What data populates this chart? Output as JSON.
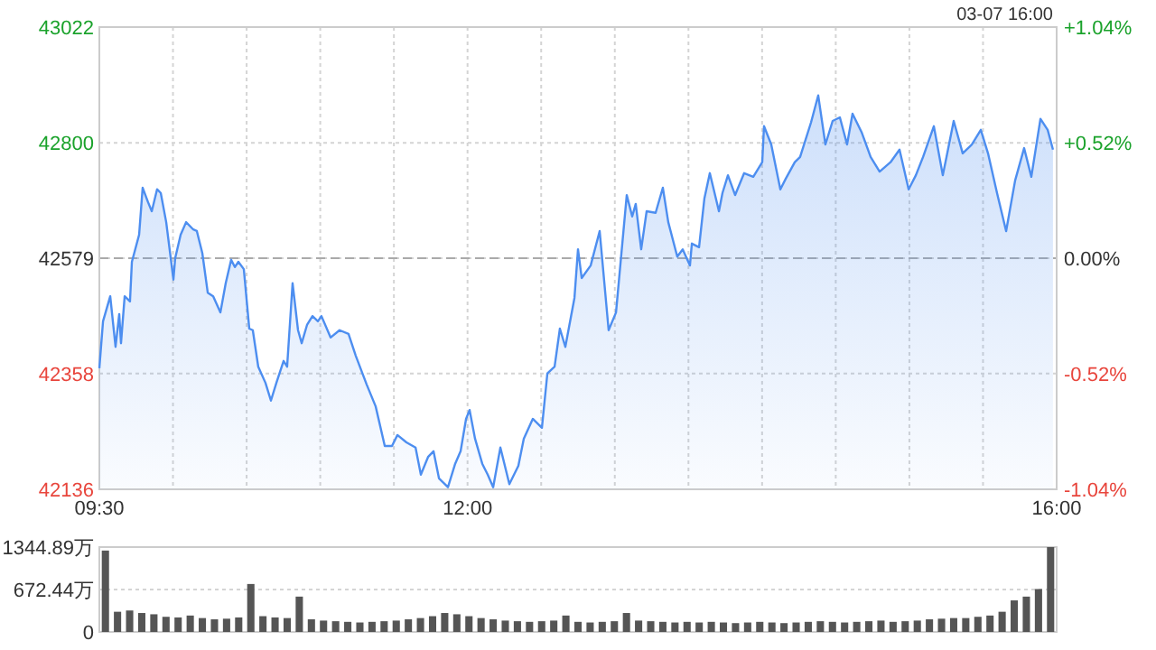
{
  "chart_data": [
    {
      "type": "area",
      "annotations": [
        "03-07 16:00"
      ],
      "grid": true,
      "x": [
        9.5,
        9.525,
        9.574,
        9.61,
        9.635,
        9.647,
        9.672,
        9.708,
        9.721,
        9.77,
        9.794,
        9.831,
        9.856,
        9.892,
        9.917,
        9.954,
        10.003,
        10.015,
        10.052,
        10.089,
        10.138,
        10.162,
        10.199,
        10.236,
        10.273,
        10.322,
        10.358,
        10.395,
        10.42,
        10.444,
        10.481,
        10.518,
        10.542,
        10.579,
        10.628,
        10.665,
        10.702,
        10.751,
        10.775,
        10.812,
        10.849,
        10.874,
        10.91,
        10.947,
        10.984,
        11.008,
        11.07,
        11.131,
        11.192,
        11.241,
        11.315,
        11.376,
        11.438,
        11.487,
        11.524,
        11.585,
        11.647,
        11.683,
        11.732,
        11.769,
        11.806,
        11.867,
        11.916,
        11.953,
        11.99,
        12.014,
        12.051,
        12.1,
        12.137,
        12.174,
        12.223,
        12.284,
        12.345,
        12.382,
        12.443,
        12.505,
        12.542,
        12.591,
        12.627,
        12.664,
        12.726,
        12.75,
        12.775,
        12.836,
        12.897,
        12.958,
        13.008,
        13.081,
        13.118,
        13.142,
        13.179,
        13.216,
        13.277,
        13.326,
        13.363,
        13.424,
        13.461,
        13.51,
        13.523,
        13.572,
        13.608,
        13.645,
        13.707,
        13.731,
        13.768,
        13.817,
        13.878,
        13.94,
        14.001,
        14.013,
        14.062,
        14.124,
        14.16,
        14.222,
        14.258,
        14.332,
        14.381,
        14.43,
        14.479,
        14.528,
        14.577,
        14.614,
        14.675,
        14.737,
        14.798,
        14.872,
        14.933,
        14.995,
        15.044,
        15.093,
        15.166,
        15.227,
        15.252,
        15.301,
        15.362,
        15.424,
        15.485,
        15.534,
        15.595,
        15.657,
        15.718,
        15.779,
        15.828,
        15.89,
        15.939,
        15.975
      ],
      "series": [
        {
          "color": "#4d8ef0",
          "values": [
            42368,
            42458,
            42506,
            42409,
            42472,
            42416,
            42506,
            42496,
            42572,
            42624,
            42714,
            42686,
            42669,
            42711,
            42704,
            42648,
            42538,
            42579,
            42624,
            42648,
            42634,
            42631,
            42589,
            42513,
            42506,
            42475,
            42531,
            42576,
            42562,
            42572,
            42558,
            42444,
            42441,
            42371,
            42340,
            42306,
            42340,
            42382,
            42371,
            42531,
            42441,
            42416,
            42451,
            42468,
            42458,
            42468,
            42427,
            42441,
            42434,
            42392,
            42337,
            42295,
            42219,
            42219,
            42240,
            42226,
            42216,
            42164,
            42198,
            42209,
            42157,
            42140,
            42185,
            42209,
            42271,
            42288,
            42233,
            42185,
            42164,
            42140,
            42216,
            42146,
            42181,
            42233,
            42271,
            42254,
            42358,
            42371,
            42444,
            42409,
            42503,
            42596,
            42541,
            42565,
            42631,
            42441,
            42475,
            42700,
            42659,
            42683,
            42596,
            42669,
            42666,
            42714,
            42648,
            42582,
            42596,
            42565,
            42607,
            42600,
            42693,
            42742,
            42669,
            42704,
            42738,
            42700,
            42742,
            42735,
            42763,
            42832,
            42797,
            42711,
            42731,
            42763,
            42773,
            42839,
            42891,
            42797,
            42842,
            42849,
            42797,
            42856,
            42821,
            42773,
            42745,
            42763,
            42787,
            42711,
            42738,
            42773,
            42832,
            42738,
            42773,
            42842,
            42780,
            42797,
            42825,
            42780,
            42704,
            42631,
            42728,
            42790,
            42735,
            42846,
            42825,
            42787
          ]
        }
      ],
      "xlim": [
        9.5,
        16
      ],
      "xticks": [
        {
          "value": 9.5,
          "label": "09:30"
        },
        {
          "value": 10,
          "label": null
        },
        {
          "value": 10.5,
          "label": null
        },
        {
          "value": 11,
          "label": null
        },
        {
          "value": 11.5,
          "label": null
        },
        {
          "value": 12,
          "label": "12:00"
        },
        {
          "value": 12.5,
          "label": null
        },
        {
          "value": 13,
          "label": null
        },
        {
          "value": 13.5,
          "label": null
        },
        {
          "value": 14,
          "label": null
        },
        {
          "value": 14.5,
          "label": null
        },
        {
          "value": 15,
          "label": null
        },
        {
          "value": 15.5,
          "label": null
        },
        {
          "value": 16,
          "label": "16:00"
        }
      ],
      "ylim": [
        42136,
        43022
      ],
      "yticks": [
        42136,
        42358,
        42579,
        42800,
        43022
      ],
      "y2lim": [
        -1.04,
        1.04
      ],
      "y2ticks": [
        {
          "value": -1.04,
          "label": "-1.04%"
        },
        {
          "value": -0.52,
          "label": "-0.52%"
        },
        {
          "value": 0,
          "label": "0.00%"
        },
        {
          "value": 0.52,
          "label": "+0.52%"
        },
        {
          "value": 1.04,
          "label": "+1.04%"
        }
      ],
      "ref_lines": [
        {
          "axis": "y",
          "value": 42579,
          "color": "#aaaaaa",
          "line_style": "dashed"
        }
      ]
    },
    {
      "type": "bar",
      "color": "#555555",
      "grid": "y",
      "tick_labels": "y",
      "categories": [
        null,
        null,
        null,
        null,
        null,
        null,
        null,
        null,
        null,
        null,
        null,
        null,
        null,
        null,
        null,
        null,
        null,
        null,
        null,
        null,
        null,
        null,
        null,
        null,
        null,
        null,
        null,
        null,
        null,
        null,
        null,
        null,
        null,
        null,
        null,
        null,
        null,
        null,
        null,
        null,
        null,
        null,
        null,
        null,
        null,
        null,
        null,
        null,
        null,
        null,
        null,
        null,
        null,
        null,
        null,
        null,
        null,
        null,
        null,
        null,
        null,
        null,
        null,
        null,
        null,
        null,
        null,
        null,
        null,
        null,
        null,
        null,
        null,
        null,
        null,
        null,
        null,
        null,
        null
      ],
      "values": [
        1290,
        320,
        340,
        300,
        280,
        240,
        230,
        260,
        220,
        200,
        210,
        230,
        760,
        250,
        230,
        220,
        560,
        200,
        180,
        170,
        160,
        150,
        160,
        170,
        180,
        200,
        220,
        250,
        300,
        280,
        250,
        220,
        200,
        180,
        170,
        160,
        170,
        180,
        260,
        160,
        150,
        160,
        170,
        300,
        180,
        170,
        160,
        150,
        160,
        150,
        160,
        150,
        140,
        150,
        160,
        150,
        140,
        150,
        160,
        170,
        160,
        150,
        160,
        170,
        180,
        160,
        170,
        180,
        200,
        210,
        220,
        220,
        240,
        260,
        320,
        500,
        560,
        680,
        1344.89
      ],
      "ylim": [
        0,
        1344.89
      ],
      "yticks": [
        0,
        {
          "value": 672.44,
          "label": "672.44万"
        },
        {
          "value": 1344.89,
          "label": "1344.89万"
        }
      ]
    }
  ]
}
